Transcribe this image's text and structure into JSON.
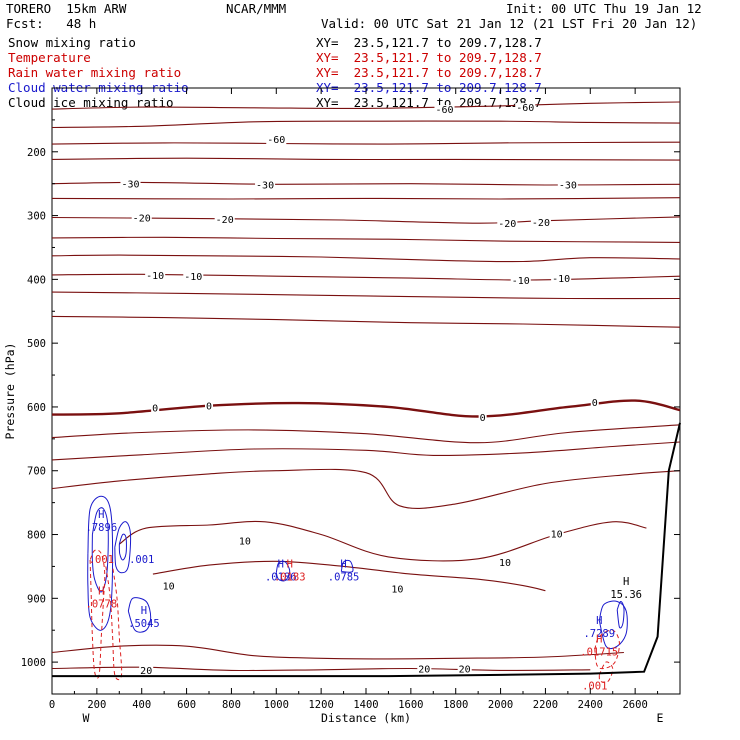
{
  "header": {
    "model": "TORERO  15km ARW",
    "center": "NCAR/MMM",
    "init": "Init: 00 UTC Thu 19 Jan 12",
    "fcst": "Fcst:   48 h",
    "valid": "Valid: 00 UTC Sat 21 Jan 12 (21 LST Fri 20 Jan 12)"
  },
  "fields": [
    {
      "name": "Snow mixing ratio",
      "xy": "XY=  23.5,121.7 to 209.7,128.7",
      "color": "#000000"
    },
    {
      "name": "Temperature",
      "xy": "XY=  23.5,121.7 to 209.7,128.7",
      "color": "#cc0000"
    },
    {
      "name": "Rain water mixing ratio",
      "xy": "XY=  23.5,121.7 to 209.7,128.7",
      "color": "#cc0000"
    },
    {
      "name": "Cloud water mixing ratio",
      "xy": "XY=  23.5,121.7 to 209.7,128.7",
      "color": "#1a1acc"
    },
    {
      "name": "Cloud ice mixing ratio",
      "xy": "XY=  23.5,121.7 to 209.7,128.7",
      "color": "#000000"
    }
  ],
  "colors": {
    "temperature": "#7a1010",
    "rain": "#dd2020",
    "cloud_water": "#1a1acc",
    "terrain": "#000000"
  },
  "chart_data": {
    "type": "line",
    "xlabel": "Distance (km)",
    "ylabel": "Pressure (hPa)",
    "xlim": [
      0,
      2800
    ],
    "ylim": [
      1050,
      100
    ],
    "x_ticks": [
      0,
      200,
      400,
      600,
      800,
      1000,
      1200,
      1400,
      1600,
      1800,
      2000,
      2200,
      2400,
      2600
    ],
    "y_ticks": [
      200,
      300,
      400,
      500,
      600,
      700,
      800,
      900,
      1000
    ],
    "x_end_labels": {
      "left": "W",
      "right": "E"
    },
    "temperature_contours": [
      {
        "value": -60,
        "points": [
          [
            0,
            133
          ],
          [
            400,
            130
          ],
          [
            900,
            131
          ],
          [
            1400,
            132
          ],
          [
            2000,
            128
          ],
          [
            2400,
            124
          ],
          [
            2800,
            122
          ]
        ]
      },
      {
        "value": -60,
        "points": [
          [
            0,
            162
          ],
          [
            400,
            160
          ],
          [
            900,
            153
          ],
          [
            1400,
            152
          ],
          [
            2000,
            152
          ],
          [
            2400,
            154
          ],
          [
            2800,
            155
          ]
        ]
      },
      {
        "value": -60,
        "points": [
          [
            0,
            188
          ],
          [
            500,
            186
          ],
          [
            1000,
            187
          ],
          [
            1500,
            188
          ],
          [
            2000,
            186
          ],
          [
            2800,
            185
          ]
        ]
      },
      {
        "value": -30,
        "points": [
          [
            0,
            212
          ],
          [
            600,
            210
          ],
          [
            1200,
            212
          ],
          [
            1800,
            212
          ],
          [
            2800,
            213
          ]
        ]
      },
      {
        "value": -30,
        "points": [
          [
            0,
            250
          ],
          [
            400,
            248
          ],
          [
            1000,
            251
          ],
          [
            1600,
            250
          ],
          [
            2200,
            252
          ],
          [
            2800,
            251
          ]
        ]
      },
      {
        "value": -30,
        "points": [
          [
            0,
            273
          ],
          [
            800,
            274
          ],
          [
            1400,
            273
          ],
          [
            2000,
            274
          ],
          [
            2800,
            272
          ]
        ]
      },
      {
        "value": -20,
        "points": [
          [
            0,
            303
          ],
          [
            400,
            304
          ],
          [
            800,
            305
          ],
          [
            1300,
            307
          ],
          [
            1900,
            312
          ],
          [
            2200,
            308
          ],
          [
            2800,
            302
          ]
        ]
      },
      {
        "value": -20,
        "points": [
          [
            0,
            335
          ],
          [
            500,
            334
          ],
          [
            1000,
            336
          ],
          [
            1500,
            337
          ],
          [
            2000,
            340
          ],
          [
            2800,
            342
          ]
        ]
      },
      {
        "value": -10,
        "points": [
          [
            0,
            363
          ],
          [
            300,
            362
          ],
          [
            700,
            363
          ],
          [
            1200,
            365
          ],
          [
            1700,
            370
          ],
          [
            2100,
            372
          ],
          [
            2400,
            366
          ],
          [
            2800,
            368
          ]
        ]
      },
      {
        "value": -10,
        "points": [
          [
            0,
            393
          ],
          [
            400,
            392
          ],
          [
            1000,
            395
          ],
          [
            1600,
            398
          ],
          [
            2100,
            401
          ],
          [
            2500,
            398
          ],
          [
            2800,
            395
          ]
        ]
      },
      {
        "value": -10,
        "points": [
          [
            0,
            420
          ],
          [
            600,
            422
          ],
          [
            1200,
            425
          ],
          [
            1800,
            428
          ],
          [
            2300,
            430
          ],
          [
            2800,
            430
          ]
        ]
      },
      {
        "value": -10,
        "points": [
          [
            0,
            458
          ],
          [
            500,
            460
          ],
          [
            1000,
            463
          ],
          [
            1600,
            468
          ],
          [
            2100,
            470
          ],
          [
            2800,
            475
          ]
        ]
      },
      {
        "value": 0,
        "points": [
          [
            0,
            612
          ],
          [
            300,
            610
          ],
          [
            700,
            598
          ],
          [
            1100,
            594
          ],
          [
            1500,
            600
          ],
          [
            1900,
            615
          ],
          [
            2300,
            600
          ],
          [
            2600,
            590
          ],
          [
            2800,
            605
          ]
        ]
      },
      {
        "value": 0,
        "points": [
          [
            0,
            648
          ],
          [
            400,
            640
          ],
          [
            900,
            636
          ],
          [
            1400,
            642
          ],
          [
            1900,
            656
          ],
          [
            2300,
            640
          ],
          [
            2800,
            628
          ]
        ]
      },
      {
        "value": 0,
        "points": [
          [
            0,
            683
          ],
          [
            400,
            675
          ],
          [
            900,
            666
          ],
          [
            1400,
            668
          ],
          [
            1700,
            676
          ],
          [
            2100,
            672
          ],
          [
            2500,
            662
          ],
          [
            2800,
            655
          ]
        ]
      },
      {
        "value": 10,
        "points": [
          [
            0,
            728
          ],
          [
            300,
            716
          ],
          [
            700,
            705
          ],
          [
            1000,
            700
          ],
          [
            1400,
            703
          ],
          [
            1550,
            755
          ],
          [
            1800,
            752
          ],
          [
            2200,
            720
          ],
          [
            2600,
            705
          ],
          [
            2800,
            700
          ]
        ]
      },
      {
        "value": 10,
        "points": [
          [
            300,
            815
          ],
          [
            420,
            790
          ],
          [
            700,
            785
          ],
          [
            950,
            780
          ],
          [
            1200,
            800
          ],
          [
            1500,
            835
          ],
          [
            1900,
            838
          ],
          [
            2250,
            800
          ],
          [
            2500,
            780
          ],
          [
            2650,
            790
          ]
        ]
      },
      {
        "value": 10,
        "points": [
          [
            450,
            862
          ],
          [
            700,
            848
          ],
          [
            1000,
            842
          ],
          [
            1300,
            850
          ],
          [
            1600,
            862
          ],
          [
            1900,
            870
          ],
          [
            2100,
            880
          ],
          [
            2200,
            888
          ]
        ]
      },
      {
        "value": 20,
        "points": [
          [
            0,
            985
          ],
          [
            300,
            975
          ],
          [
            600,
            975
          ],
          [
            900,
            990
          ],
          [
            1200,
            994
          ],
          [
            1500,
            995
          ],
          [
            1800,
            994
          ],
          [
            2200,
            992
          ],
          [
            2550,
            985
          ]
        ]
      },
      {
        "value": 20,
        "points": [
          [
            0,
            1010
          ],
          [
            400,
            1008
          ],
          [
            800,
            1013
          ],
          [
            1200,
            1012
          ],
          [
            1600,
            1010
          ],
          [
            2000,
            1013
          ],
          [
            2400,
            1012
          ]
        ]
      }
    ],
    "temperature_labels": [
      {
        "text": "-60",
        "x": 1000,
        "y": 180
      },
      {
        "text": "-60",
        "x": 1750,
        "y": 133
      },
      {
        "text": "-60",
        "x": 2110,
        "y": 130
      },
      {
        "text": "-30",
        "x": 350,
        "y": 250
      },
      {
        "text": "-30",
        "x": 950,
        "y": 251
      },
      {
        "text": "-30",
        "x": 2300,
        "y": 251
      },
      {
        "text": "-20",
        "x": 400,
        "y": 303
      },
      {
        "text": "-20",
        "x": 770,
        "y": 305
      },
      {
        "text": "-20",
        "x": 2030,
        "y": 312
      },
      {
        "text": "-20",
        "x": 2180,
        "y": 310
      },
      {
        "text": "-10",
        "x": 460,
        "y": 393
      },
      {
        "text": "-10",
        "x": 630,
        "y": 395
      },
      {
        "text": "-10",
        "x": 2090,
        "y": 401
      },
      {
        "text": "-10",
        "x": 2270,
        "y": 398
      },
      {
        "text": "0",
        "x": 460,
        "y": 601
      },
      {
        "text": "0",
        "x": 700,
        "y": 598
      },
      {
        "text": "0",
        "x": 1920,
        "y": 616
      },
      {
        "text": "0",
        "x": 2420,
        "y": 592
      },
      {
        "text": "10",
        "x": 860,
        "y": 809
      },
      {
        "text": "10",
        "x": 2020,
        "y": 843
      },
      {
        "text": "10",
        "x": 2250,
        "y": 798
      },
      {
        "text": "10",
        "x": 1540,
        "y": 885
      },
      {
        "text": "10",
        "x": 520,
        "y": 880
      },
      {
        "text": "20",
        "x": 420,
        "y": 1012
      },
      {
        "text": "20",
        "x": 1660,
        "y": 1010
      },
      {
        "text": "20",
        "x": 1840,
        "y": 1010
      }
    ],
    "cloud_water_maxima": [
      {
        "mark": "H",
        "value": ".7896",
        "x": 220,
        "y": 790
      },
      {
        "mark": "H",
        "value": ".5045",
        "x": 410,
        "y": 940
      },
      {
        "mark": "H",
        "value": ".0186",
        "x": 1020,
        "y": 867
      },
      {
        "mark": "H",
        "value": ".0785",
        "x": 1300,
        "y": 867
      },
      {
        "mark": "H",
        "value": ".7289",
        "x": 2440,
        "y": 956
      },
      {
        "mark": "",
        "value": ".001",
        "x": 400,
        "y": 840
      }
    ],
    "rain_maxima": [
      {
        "mark": "H",
        "value": ".0778",
        "x": 220,
        "y": 910
      },
      {
        "mark": "H",
        "value": ".0183",
        "x": 1060,
        "y": 867
      },
      {
        "mark": "H",
        "value": ".01715",
        "x": 2440,
        "y": 985
      },
      {
        "mark": "",
        "value": ".001",
        "x": 2420,
        "y": 1038
      },
      {
        "mark": "",
        "value": ".001",
        "x": 220,
        "y": 840
      }
    ],
    "snow_maxima": [
      {
        "mark": "H",
        "value": "15.36",
        "x": 2560,
        "y": 895
      }
    ],
    "terrain": [
      [
        0,
        1022
      ],
      [
        500,
        1022
      ],
      [
        1000,
        1022
      ],
      [
        1500,
        1022
      ],
      [
        2000,
        1020
      ],
      [
        2400,
        1018
      ],
      [
        2640,
        1015
      ],
      [
        2700,
        960
      ],
      [
        2750,
        700
      ],
      [
        2800,
        625
      ]
    ]
  }
}
